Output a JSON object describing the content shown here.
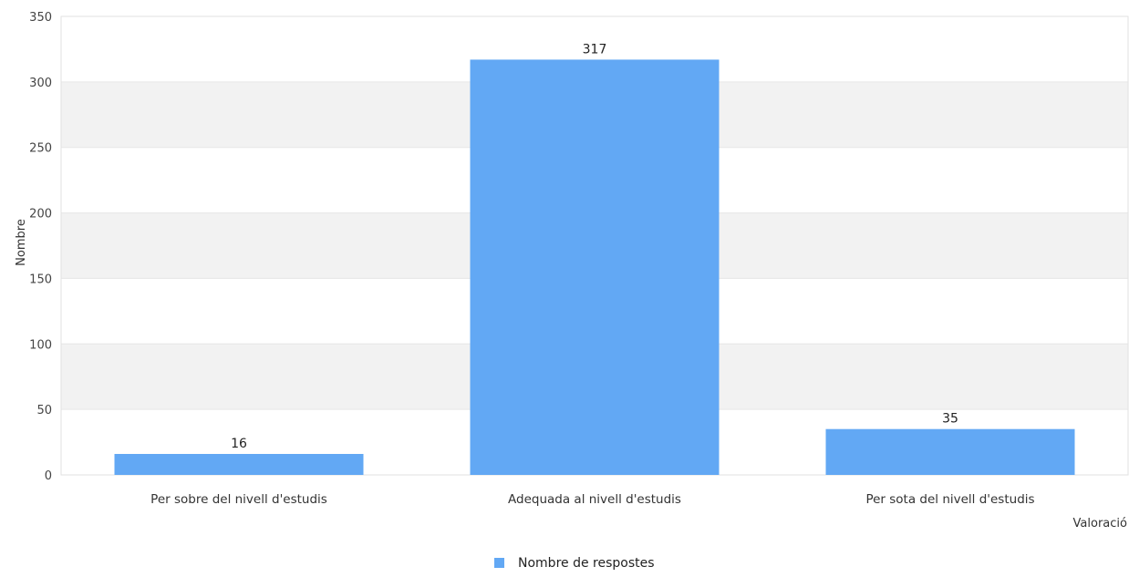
{
  "chart_data": {
    "type": "bar",
    "categories": [
      "Per sobre del nivell d'estudis",
      "Adequada al nivell d'estudis",
      "Per sota del nivell d'estudis"
    ],
    "series": [
      {
        "name": "Nombre de respostes",
        "values": [
          16,
          317,
          35
        ],
        "color": "#62a8f4"
      }
    ],
    "data_labels": [
      "16",
      "317",
      "35"
    ],
    "title": "",
    "xlabel": "Valoració",
    "ylabel": "Nombre",
    "ylim": [
      0,
      350
    ],
    "yticks": [
      0,
      50,
      100,
      150,
      200,
      250,
      300,
      350
    ],
    "grid": "alternating horizontal bands",
    "band_color": "#f2f2f2",
    "legend_position": "bottom-center"
  }
}
